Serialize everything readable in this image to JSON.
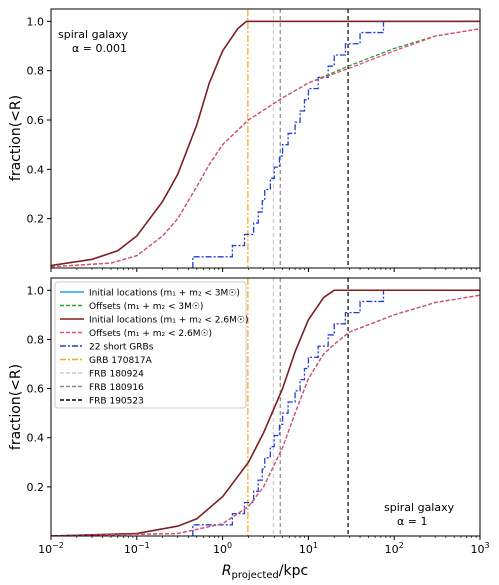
{
  "chart_data": {
    "type": "line",
    "x_scale": "log",
    "xlim": [
      0.01,
      1000
    ],
    "ylim": [
      0,
      1.05
    ],
    "xlabel_main": "R",
    "xlabel_sub": "projected",
    "xlabel_unit": "/kpc",
    "ylabel": "fraction(<R)",
    "x_ticks": [
      {
        "value": 0.01,
        "base": "10",
        "exp": "−2"
      },
      {
        "value": 0.1,
        "base": "10",
        "exp": "−1"
      },
      {
        "value": 1,
        "base": "10",
        "exp": "0"
      },
      {
        "value": 10,
        "base": "10",
        "exp": "1"
      },
      {
        "value": 100,
        "base": "10",
        "exp": "2"
      },
      {
        "value": 1000,
        "base": "10",
        "exp": "3"
      }
    ],
    "y_ticks": [
      "0.2",
      "0.4",
      "0.6",
      "0.8",
      "1.0"
    ],
    "legend": {
      "placement": "upper-left (bottom panel)",
      "entries": [
        {
          "label": "Initial locations (m₁ + m₂ < 3M☉)",
          "color": "#1fa8e0",
          "style": "solid"
        },
        {
          "label": "Offsets (m₁ + m₂ < 3M☉)",
          "color": "#2ca02c",
          "style": "dashed"
        },
        {
          "label": "Initial locations (m₁ + m₂ < 2.6M☉)",
          "color": "#8b1a1a",
          "style": "solid"
        },
        {
          "label": "Offsets (m₁ + m₂ < 2.6M☉)",
          "color": "#e8467c",
          "style": "dashed"
        },
        {
          "label": "22 short GRBs",
          "color": "#1f3fd6",
          "style": "dashdot"
        },
        {
          "label": "GRB 170817A",
          "color": "#f5a623",
          "style": "dashdot"
        },
        {
          "label": "FRB 180924",
          "color": "#cccccc",
          "style": "dashed"
        },
        {
          "label": "FRB 180916",
          "color": "#888888",
          "style": "dashed"
        },
        {
          "label": "FRB 190523",
          "color": "#000000",
          "style": "dashed"
        }
      ]
    },
    "vlines": [
      {
        "name": "GRB 170817A",
        "x": 1.97,
        "color": "#f5a623",
        "dash": "7,2,2,2"
      },
      {
        "name": "FRB 180924",
        "x": 3.9,
        "color": "#cccccc",
        "dash": "4,3"
      },
      {
        "name": "FRB 180916",
        "x": 4.7,
        "color": "#888888",
        "dash": "4,3"
      },
      {
        "name": "FRB 190523",
        "x": 29,
        "color": "#000000",
        "dash": "4,3"
      }
    ],
    "grb_x": [
      0.45,
      1.3,
      1.8,
      2.3,
      2.6,
      2.9,
      3.1,
      3.6,
      4.0,
      4.6,
      5.0,
      5.8,
      7.0,
      8.0,
      9.0,
      10.0,
      13.0,
      17.0,
      20.0,
      27.0,
      40.0,
      75.0
    ],
    "panels": [
      {
        "annotation": [
          "spiral galaxy",
          "α = 0.001"
        ],
        "annotation_pos": "upper-left",
        "series": [
          {
            "label": "Initial locations (m₁ + m₂ < 3M☉)",
            "color": "#1fa8e0",
            "style": "solid",
            "points": [
              [
                0.01,
                0.01
              ],
              [
                0.03,
                0.035
              ],
              [
                0.06,
                0.07
              ],
              [
                0.1,
                0.13
              ],
              [
                0.2,
                0.27
              ],
              [
                0.3,
                0.38
              ],
              [
                0.5,
                0.58
              ],
              [
                0.7,
                0.75
              ],
              [
                1.0,
                0.88
              ],
              [
                1.5,
                0.97
              ],
              [
                1.9,
                1.0
              ],
              [
                1000,
                1.0
              ]
            ]
          },
          {
            "label": "Initial locations (m₁ + m₂ < 2.6M☉)",
            "color": "#8b1a1a",
            "style": "solid",
            "points": [
              [
                0.01,
                0.01
              ],
              [
                0.03,
                0.035
              ],
              [
                0.06,
                0.07
              ],
              [
                0.1,
                0.13
              ],
              [
                0.2,
                0.27
              ],
              [
                0.3,
                0.38
              ],
              [
                0.5,
                0.58
              ],
              [
                0.7,
                0.75
              ],
              [
                1.0,
                0.88
              ],
              [
                1.5,
                0.97
              ],
              [
                1.9,
                1.0
              ],
              [
                1000,
                1.0
              ]
            ]
          },
          {
            "label": "Offsets (m₁ + m₂ < 3M☉)",
            "color": "#2ca02c",
            "style": "dashed",
            "points": [
              [
                0.01,
                0.005
              ],
              [
                0.05,
                0.02
              ],
              [
                0.1,
                0.05
              ],
              [
                0.2,
                0.13
              ],
              [
                0.3,
                0.2
              ],
              [
                0.5,
                0.33
              ],
              [
                0.7,
                0.42
              ],
              [
                1.0,
                0.5
              ],
              [
                2.0,
                0.6
              ],
              [
                5.0,
                0.69
              ],
              [
                10,
                0.75
              ],
              [
                30,
                0.82
              ],
              [
                100,
                0.89
              ],
              [
                300,
                0.94
              ],
              [
                1000,
                0.97
              ]
            ]
          },
          {
            "label": "Offsets (m₁ + m₂ < 2.6M☉)",
            "color": "#e8467c",
            "style": "dashed",
            "points": [
              [
                0.01,
                0.005
              ],
              [
                0.05,
                0.02
              ],
              [
                0.1,
                0.05
              ],
              [
                0.2,
                0.13
              ],
              [
                0.3,
                0.2
              ],
              [
                0.5,
                0.33
              ],
              [
                0.7,
                0.42
              ],
              [
                1.0,
                0.5
              ],
              [
                2.0,
                0.6
              ],
              [
                5.0,
                0.69
              ],
              [
                10,
                0.75
              ],
              [
                30,
                0.81
              ],
              [
                100,
                0.88
              ],
              [
                300,
                0.94
              ],
              [
                1000,
                0.97
              ]
            ]
          }
        ]
      },
      {
        "annotation": [
          "spiral galaxy",
          "α = 1"
        ],
        "annotation_pos": "lower-right",
        "series": [
          {
            "label": "Initial locations (m₁ + m₂ < 3M☉)",
            "color": "#1fa8e0",
            "style": "solid",
            "points": [
              [
                0.01,
                0.0
              ],
              [
                0.1,
                0.01
              ],
              [
                0.3,
                0.04
              ],
              [
                0.5,
                0.07
              ],
              [
                1.0,
                0.16
              ],
              [
                2.0,
                0.3
              ],
              [
                3.0,
                0.42
              ],
              [
                5.0,
                0.6
              ],
              [
                7.0,
                0.75
              ],
              [
                10,
                0.88
              ],
              [
                15,
                0.97
              ],
              [
                20,
                1.0
              ],
              [
                1000,
                1.0
              ]
            ]
          },
          {
            "label": "Initial locations (m₁ + m₂ < 2.6M☉)",
            "color": "#8b1a1a",
            "style": "solid",
            "points": [
              [
                0.01,
                0.0
              ],
              [
                0.1,
                0.01
              ],
              [
                0.3,
                0.04
              ],
              [
                0.5,
                0.07
              ],
              [
                1.0,
                0.16
              ],
              [
                2.0,
                0.3
              ],
              [
                3.0,
                0.42
              ],
              [
                5.0,
                0.6
              ],
              [
                7.0,
                0.75
              ],
              [
                10,
                0.88
              ],
              [
                15,
                0.97
              ],
              [
                20,
                1.0
              ],
              [
                1000,
                1.0
              ]
            ]
          },
          {
            "label": "Offsets (m₁ + m₂ < 3M☉)",
            "color": "#2ca02c",
            "style": "dashed",
            "points": [
              [
                0.01,
                0.0
              ],
              [
                0.3,
                0.01
              ],
              [
                1.0,
                0.05
              ],
              [
                2.0,
                0.12
              ],
              [
                3.0,
                0.2
              ],
              [
                5.0,
                0.36
              ],
              [
                7.0,
                0.5
              ],
              [
                10,
                0.64
              ],
              [
                15,
                0.74
              ],
              [
                20,
                0.78
              ],
              [
                30,
                0.83
              ],
              [
                100,
                0.9
              ],
              [
                300,
                0.95
              ],
              [
                1000,
                0.98
              ]
            ]
          },
          {
            "label": "Offsets (m₁ + m₂ < 2.6M☉)",
            "color": "#e8467c",
            "style": "dashed",
            "points": [
              [
                0.01,
                0.0
              ],
              [
                0.3,
                0.01
              ],
              [
                1.0,
                0.05
              ],
              [
                2.0,
                0.12
              ],
              [
                3.0,
                0.2
              ],
              [
                5.0,
                0.36
              ],
              [
                7.0,
                0.5
              ],
              [
                10,
                0.64
              ],
              [
                15,
                0.74
              ],
              [
                20,
                0.78
              ],
              [
                30,
                0.83
              ],
              [
                100,
                0.9
              ],
              [
                300,
                0.95
              ],
              [
                1000,
                0.98
              ]
            ]
          }
        ]
      }
    ]
  }
}
